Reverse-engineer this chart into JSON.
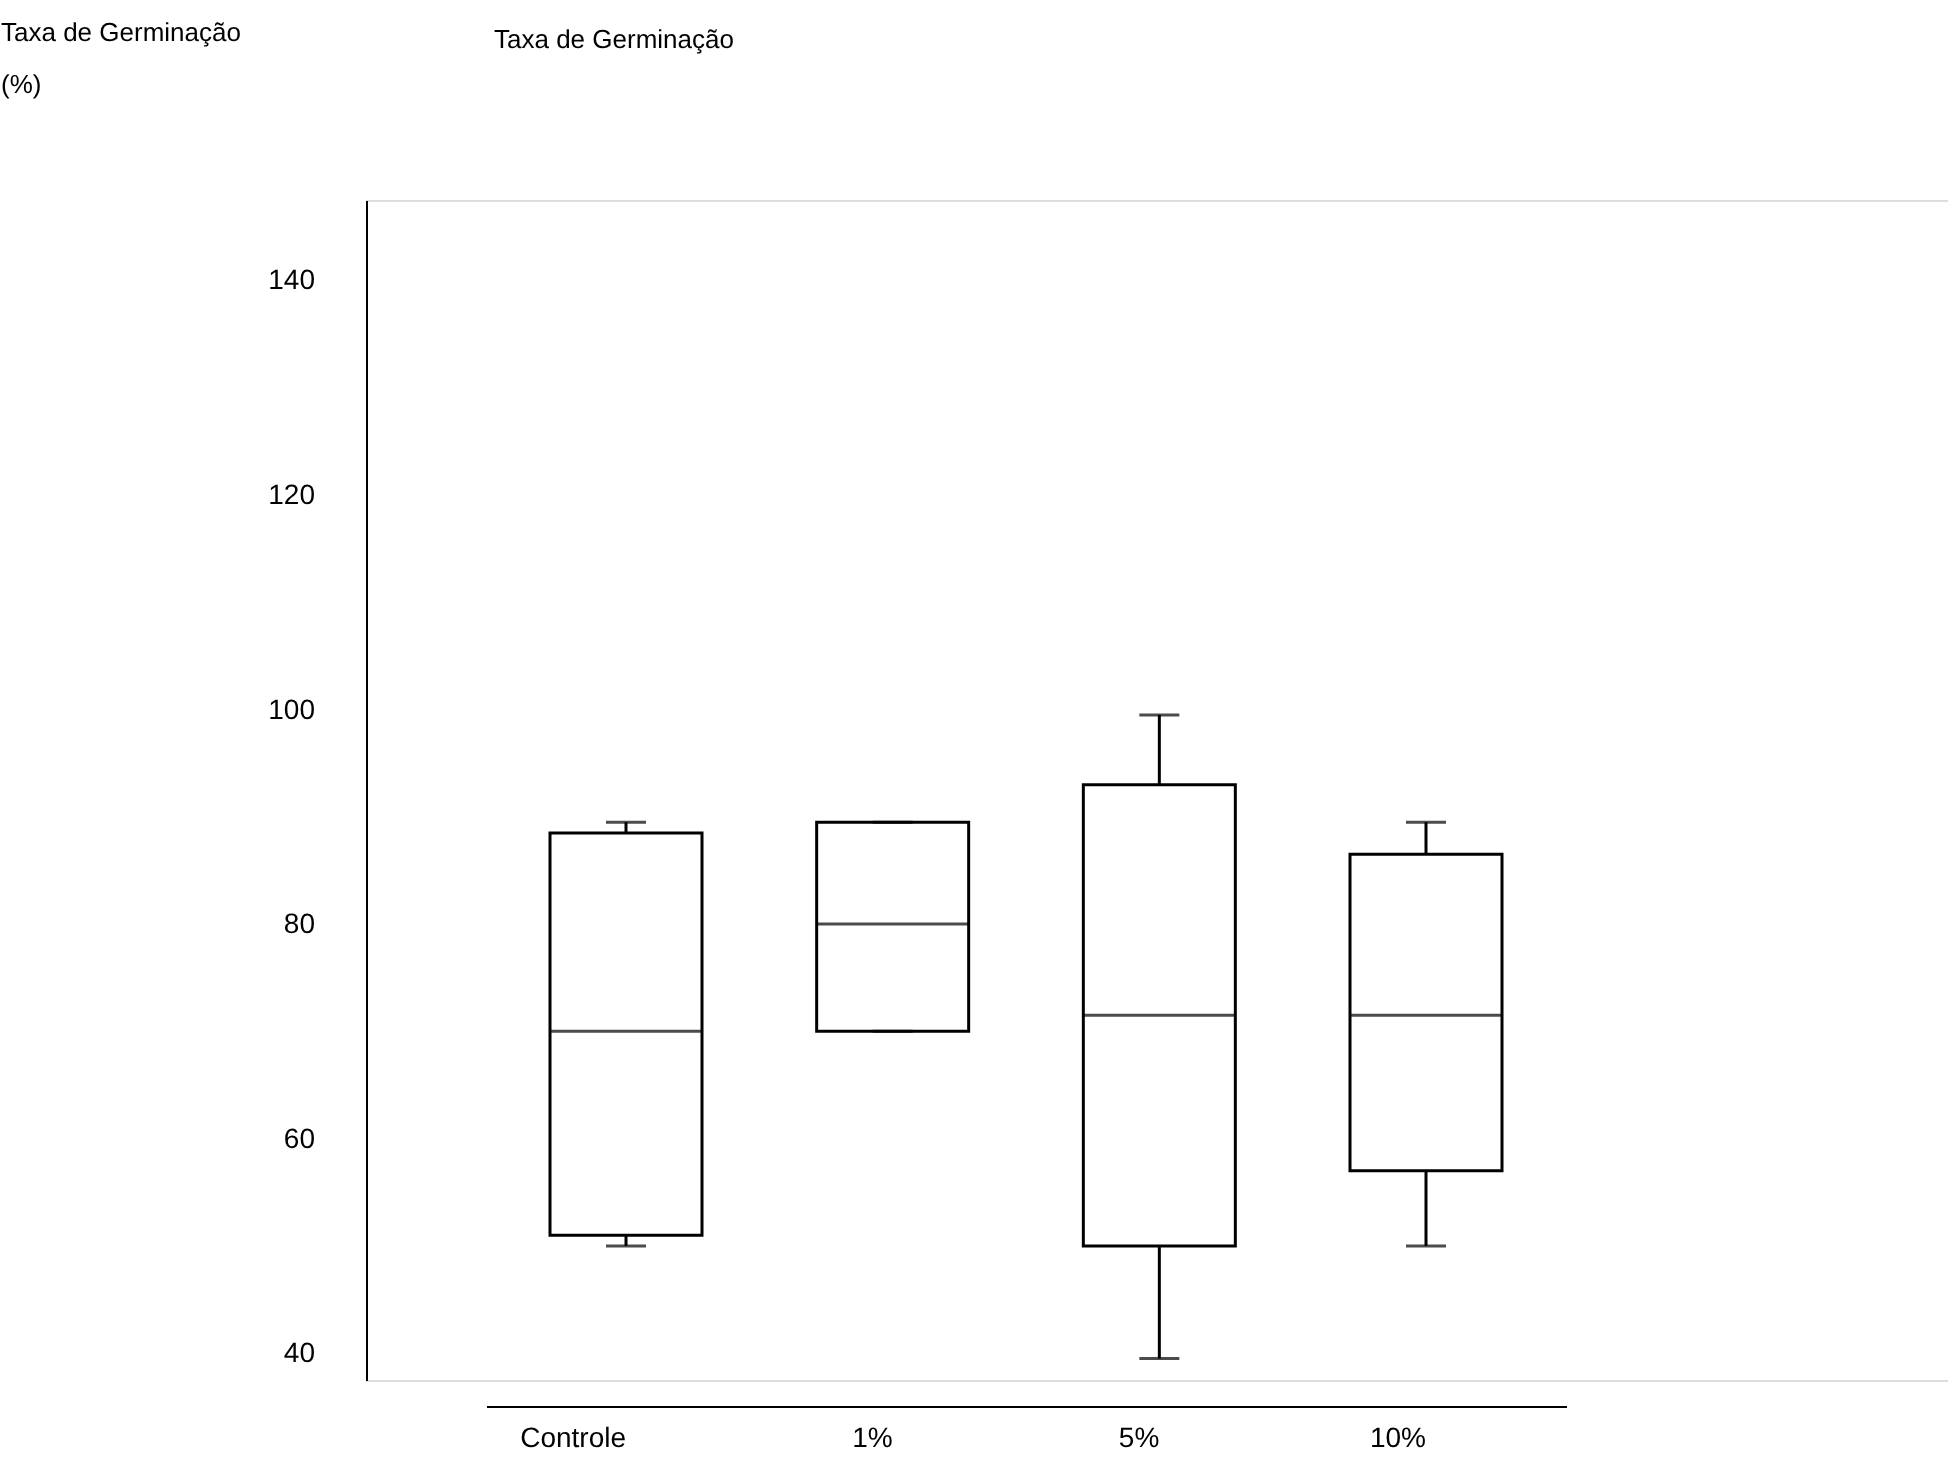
{
  "chart_data": {
    "type": "box",
    "title": "Taxa de Germinação",
    "ylabel": "Taxa de Germinação\n(%)",
    "categories": [
      "Controle",
      "1%",
      "5%",
      "10%"
    ],
    "boxes": [
      {
        "low": 50,
        "q1": 51,
        "median": 70,
        "q3": 88.5,
        "high": 89.5
      },
      {
        "low": 70,
        "q1": 70,
        "median": 80,
        "q3": 89.5,
        "high": 89.5
      },
      {
        "low": 39.5,
        "q1": 50,
        "median": 71.5,
        "q3": 93,
        "high": 99.5
      },
      {
        "low": 50,
        "q1": 57,
        "median": 71.5,
        "q3": 86.5,
        "high": 89.5
      }
    ],
    "color": "#ffffff",
    "ylim": [
      37.5,
      147.5
    ],
    "yticks": [
      40,
      60,
      80,
      100,
      120,
      140
    ],
    "grid": false
  }
}
